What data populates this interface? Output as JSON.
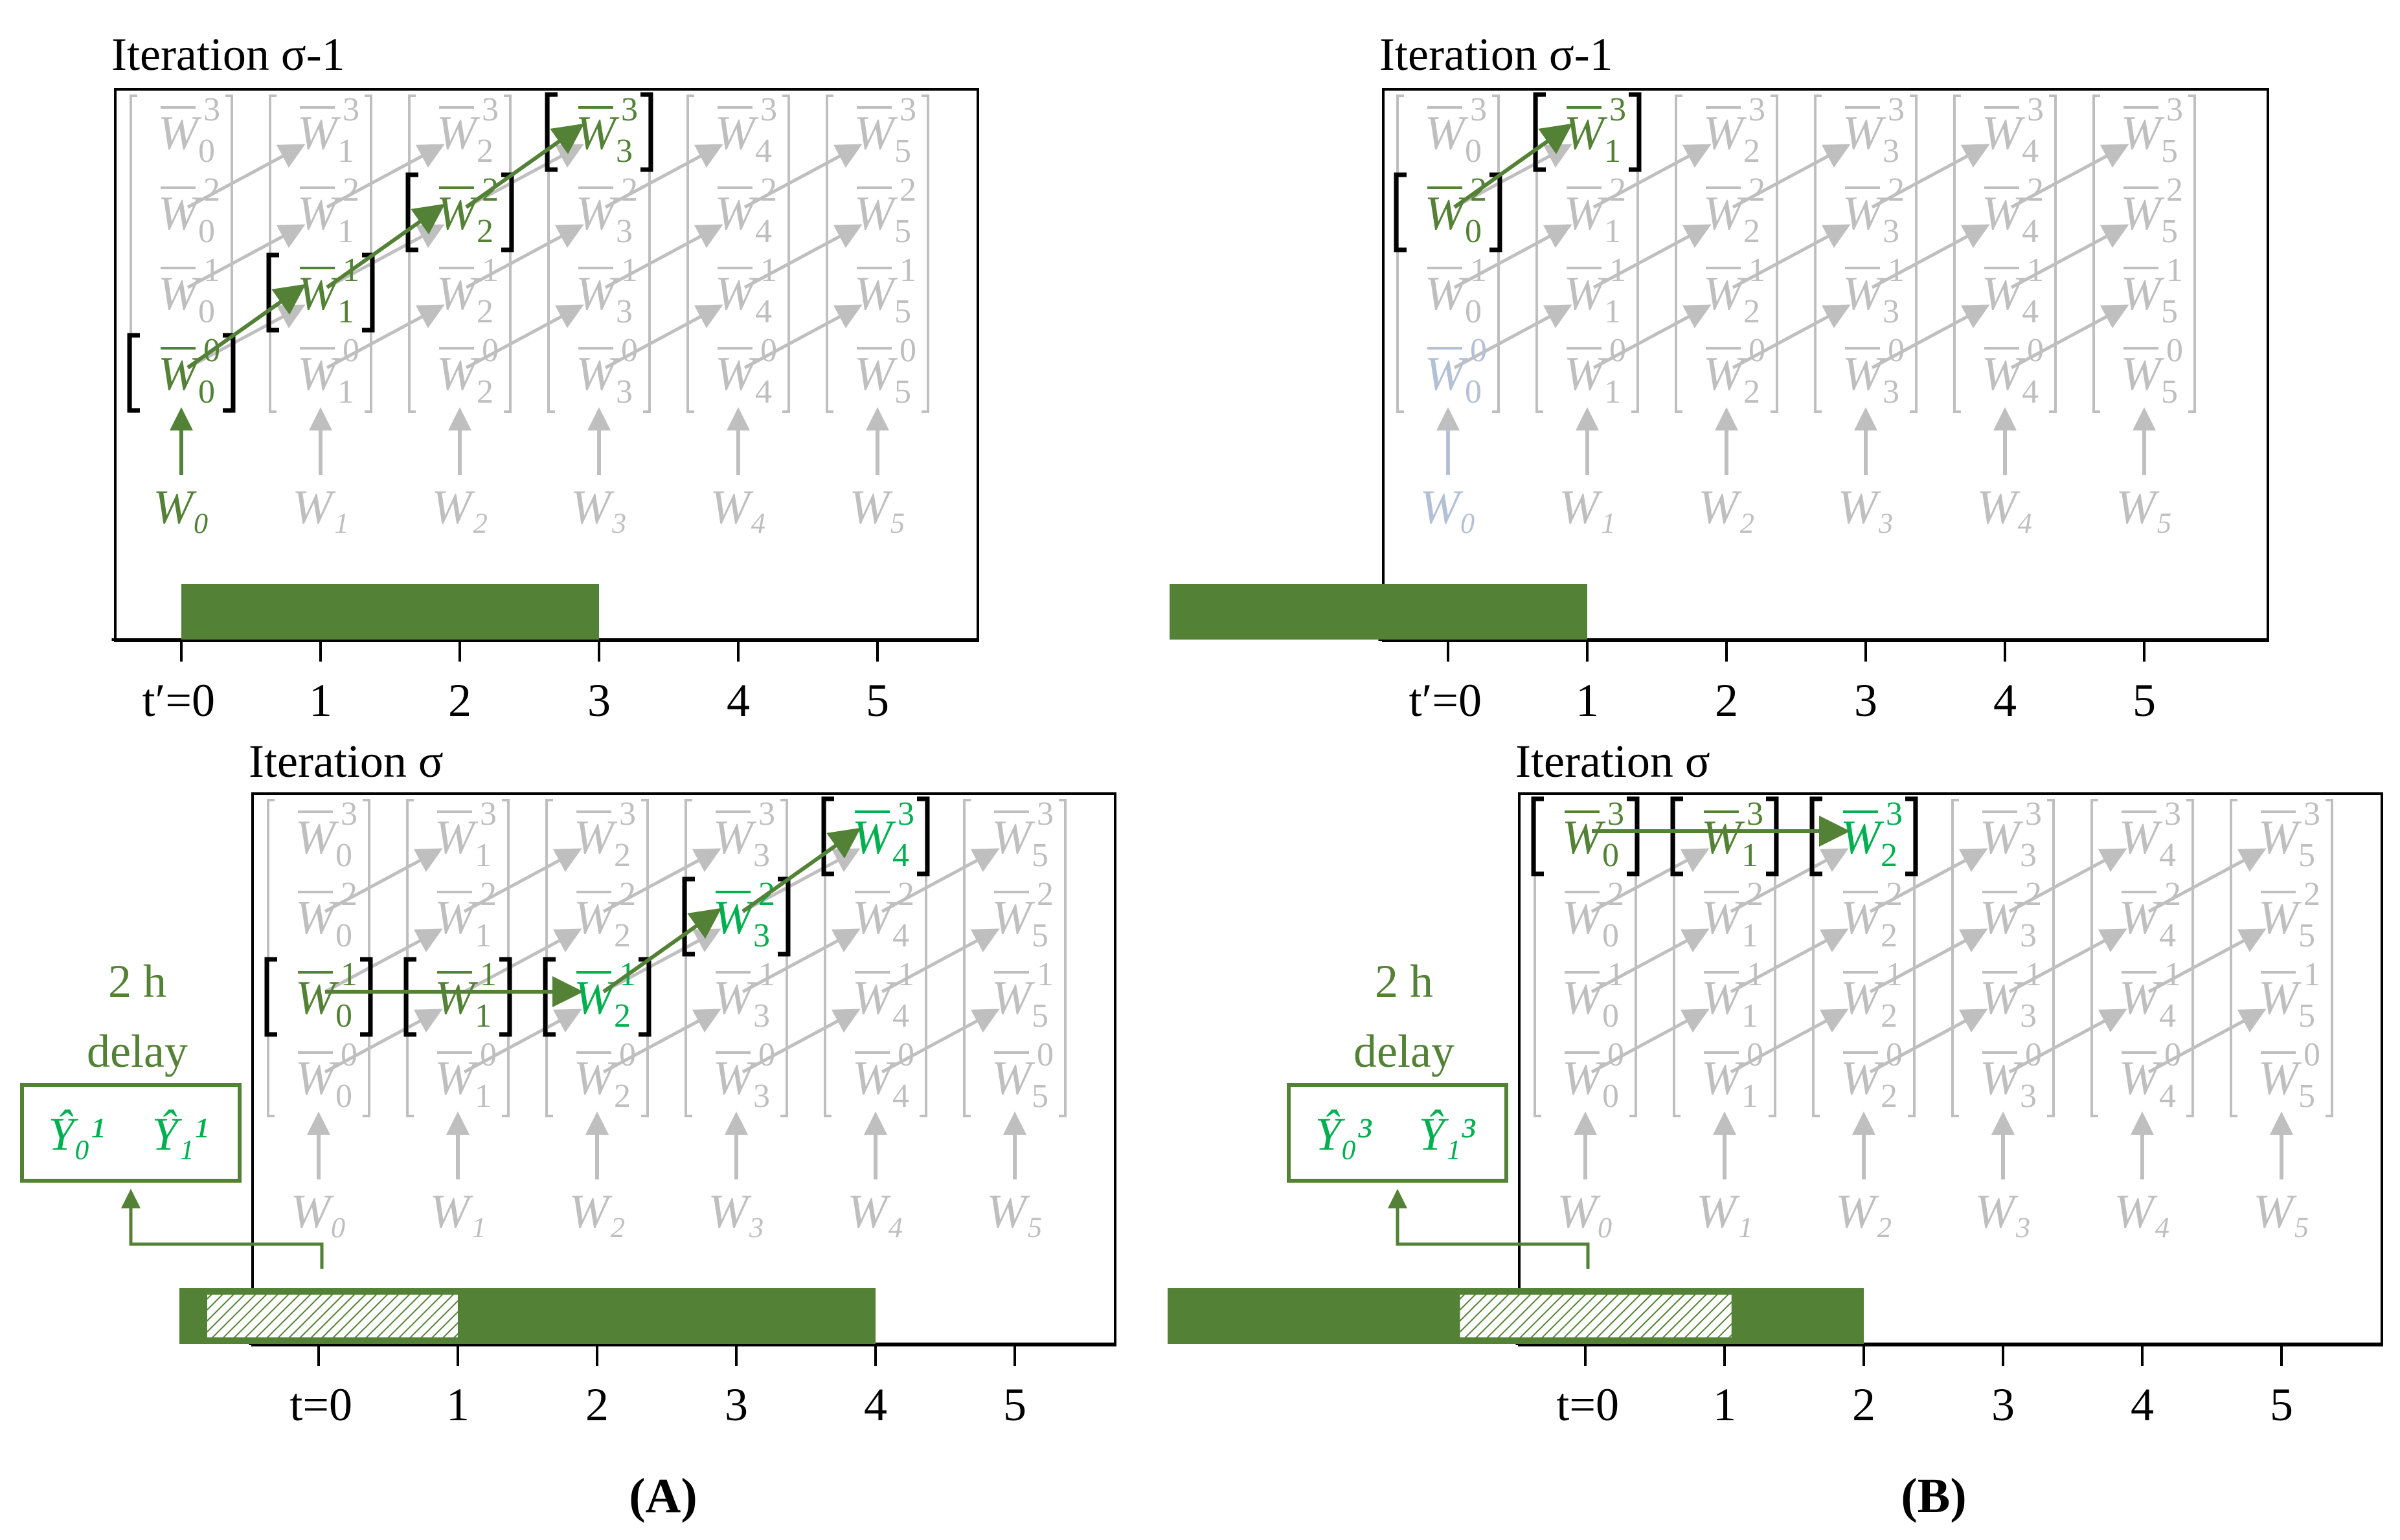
{
  "colors": {
    "green": "#538135",
    "bright_green": "#00b050",
    "gray": "#bfbfbf",
    "black": "#000000",
    "faded_blue": "#b4c0d6"
  },
  "panels": {
    "A": {
      "label": "(A)"
    },
    "B": {
      "label": "(B)"
    }
  },
  "labels": {
    "iteration_prev": "Iteration σ-1",
    "iteration_cur": "Iteration σ",
    "delay_line1": "2 h",
    "delay_line2": "delay",
    "tprime_zero": "t′=0",
    "t_zero": "t=0",
    "ticks": [
      "1",
      "2",
      "3",
      "4",
      "5"
    ]
  },
  "matrix": {
    "base": "W",
    "inputs": [
      "W₀",
      "W₁",
      "W₂",
      "W₃",
      "W₄",
      "W₅"
    ]
  },
  "predictions": {
    "A": [
      "Ŷ₀¹",
      "Ŷ₁¹"
    ],
    "B": [
      "Ŷ₀³",
      "Ŷ₁³"
    ]
  },
  "timeline": {
    "A_prev": {
      "bar_start": 0,
      "bar_end": 3
    },
    "B_prev": {
      "bar_start": -2,
      "bar_end": 1
    },
    "A_cur": {
      "bar_start": -1,
      "bar_end": 4,
      "hatch_start": -0.8,
      "hatch_end": 1
    },
    "B_cur": {
      "bar_start": -3,
      "bar_end": 2,
      "hatch_start": -0.9,
      "hatch_end": 1.05
    }
  }
}
